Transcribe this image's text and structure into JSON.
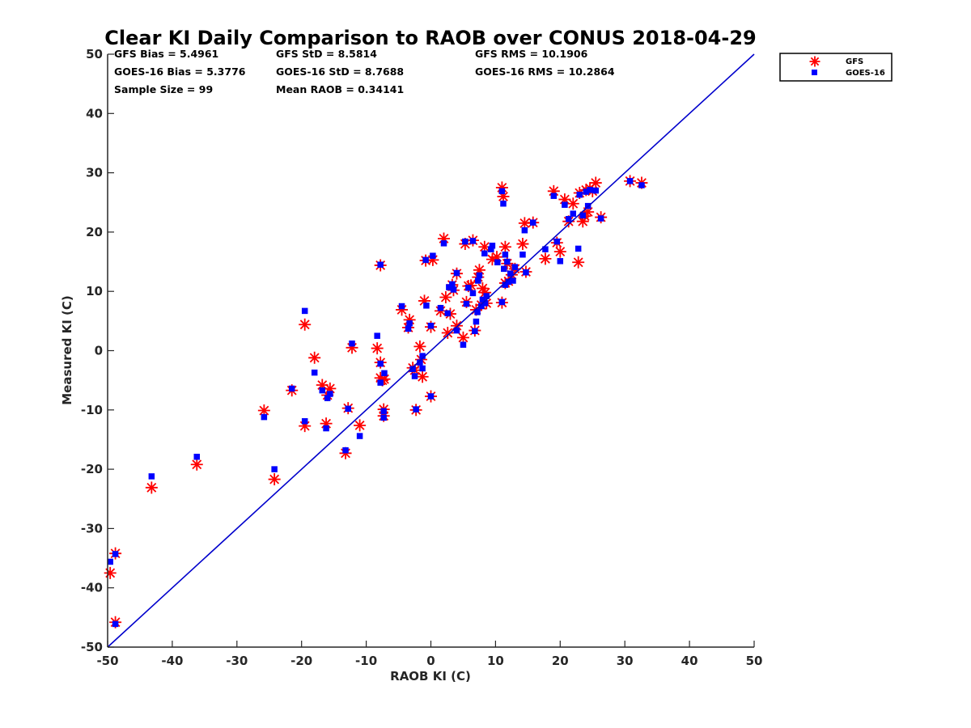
{
  "chart_data": {
    "type": "scatter",
    "title": "Clear KI Daily Comparison to RAOB over CONUS 2018-04-29",
    "xlabel": "RAOB KI (C)",
    "ylabel": "Measured KI (C)",
    "xlim": [
      -50,
      50
    ],
    "ylim": [
      -50,
      50
    ],
    "xticks": [
      "-50",
      "-40",
      "-30",
      "-20",
      "-10",
      "0",
      "10",
      "20",
      "30",
      "40",
      "50"
    ],
    "yticks": [
      "-50",
      "-40",
      "-30",
      "-20",
      "-10",
      "0",
      "10",
      "20",
      "30",
      "40",
      "50"
    ],
    "grid": false,
    "legend_position": "outside-top-right",
    "stats": [
      [
        "GFS Bias = 5.4961",
        "GFS StD = 8.5814",
        "GFS RMS = 10.1906"
      ],
      [
        "GOES-16 Bias = 5.3776",
        "GOES-16 StD = 8.7688",
        "GOES-16 RMS = 10.2864"
      ],
      [
        "Sample Size = 99",
        "Mean RAOB = 0.34141",
        ""
      ]
    ],
    "reference_line": {
      "x": [
        -50,
        50
      ],
      "y": [
        -50,
        50
      ],
      "color": "#0000cc"
    },
    "series": [
      {
        "name": "GFS",
        "marker": "asterisk",
        "color": "#ff0000",
        "points": [
          [
            -49.6,
            -37.5
          ],
          [
            -48.8,
            -45.8
          ],
          [
            -48.8,
            -34.2
          ],
          [
            -43.2,
            -23.1
          ],
          [
            -36.2,
            -19.2
          ],
          [
            -25.8,
            -10.1
          ],
          [
            -24.2,
            -21.7
          ],
          [
            -21.5,
            -6.7
          ],
          [
            -19.5,
            -12.7
          ],
          [
            -19.5,
            4.4
          ],
          [
            -18.0,
            -1.2
          ],
          [
            -16.8,
            -5.8
          ],
          [
            -16.2,
            -12.3
          ],
          [
            -16.0,
            -7.5
          ],
          [
            -15.6,
            -6.4
          ],
          [
            -13.2,
            -17.3
          ],
          [
            -12.8,
            -9.7
          ],
          [
            -12.2,
            0.5
          ],
          [
            -11.0,
            -12.6
          ],
          [
            -8.3,
            0.4
          ],
          [
            -7.8,
            14.4
          ],
          [
            -7.8,
            -4.6
          ],
          [
            -7.8,
            -2.0
          ],
          [
            -7.2,
            -4.8
          ],
          [
            -7.3,
            -11.0
          ],
          [
            -7.3,
            -9.9
          ],
          [
            -4.5,
            6.9
          ],
          [
            -3.5,
            3.9
          ],
          [
            -3.3,
            5.2
          ],
          [
            -2.8,
            -2.9
          ],
          [
            -2.5,
            -3.3
          ],
          [
            -2.3,
            -10.0
          ],
          [
            -1.7,
            0.7
          ],
          [
            -1.3,
            -4.4
          ],
          [
            -1.0,
            8.4
          ],
          [
            -0.8,
            15.2
          ],
          [
            0.0,
            4.0
          ],
          [
            0.0,
            -7.7
          ],
          [
            0.3,
            15.3
          ],
          [
            1.5,
            6.7
          ],
          [
            2.0,
            18.9
          ],
          [
            2.3,
            9.0
          ],
          [
            2.6,
            3.0
          ],
          [
            3.0,
            6.2
          ],
          [
            3.3,
            11.1
          ],
          [
            3.5,
            10.2
          ],
          [
            4.0,
            4.2
          ],
          [
            4.0,
            13.0
          ],
          [
            5.0,
            2.2
          ],
          [
            5.3,
            18.0
          ],
          [
            5.5,
            8.2
          ],
          [
            5.8,
            10.9
          ],
          [
            6.5,
            18.6
          ],
          [
            6.8,
            3.4
          ],
          [
            7.0,
            6.9
          ],
          [
            7.3,
            12.4
          ],
          [
            7.5,
            13.6
          ],
          [
            7.8,
            7.7
          ],
          [
            8.3,
            17.5
          ],
          [
            8.4,
            9.8
          ],
          [
            8.6,
            8.0
          ],
          [
            9.5,
            15.4
          ],
          [
            11.0,
            8.1
          ],
          [
            11.0,
            27.5
          ],
          [
            11.2,
            26.0
          ],
          [
            11.5,
            11.4
          ],
          [
            11.5,
            17.5
          ],
          [
            11.8,
            14.7
          ],
          [
            12.0,
            11.7
          ],
          [
            13.0,
            13.8
          ],
          [
            14.2,
            18.0
          ],
          [
            14.5,
            21.5
          ],
          [
            14.7,
            13.3
          ],
          [
            15.8,
            21.6
          ],
          [
            17.7,
            15.5
          ],
          [
            19.0,
            26.9
          ],
          [
            19.5,
            18.2
          ],
          [
            20.0,
            16.7
          ],
          [
            20.7,
            25.5
          ],
          [
            21.3,
            21.8
          ],
          [
            22.0,
            24.8
          ],
          [
            22.8,
            14.9
          ],
          [
            23.0,
            26.6
          ],
          [
            23.5,
            21.8
          ],
          [
            23.8,
            22.7
          ],
          [
            24.0,
            27.1
          ],
          [
            24.3,
            23.4
          ],
          [
            24.6,
            27.4
          ],
          [
            25.5,
            28.3
          ],
          [
            26.3,
            22.5
          ],
          [
            30.8,
            28.6
          ],
          [
            32.6,
            28.3
          ],
          [
            -7.5,
            -5.0
          ],
          [
            8.0,
            10.5
          ],
          [
            12.5,
            12.8
          ],
          [
            25.0,
            26.9
          ],
          [
            6.2,
            11.0
          ],
          [
            -1.5,
            -1.5
          ],
          [
            10.2,
            15.8
          ]
        ]
      },
      {
        "name": "GOES-16",
        "marker": "square",
        "color": "#0000ff",
        "points": [
          [
            -49.6,
            -35.6
          ],
          [
            -48.8,
            -46.1
          ],
          [
            -48.8,
            -34.3
          ],
          [
            -43.2,
            -21.2
          ],
          [
            -36.2,
            -17.9
          ],
          [
            -25.8,
            -11.2
          ],
          [
            -24.2,
            -20.0
          ],
          [
            -21.5,
            -6.4
          ],
          [
            -19.5,
            -11.9
          ],
          [
            -19.5,
            6.7
          ],
          [
            -18.0,
            -3.7
          ],
          [
            -16.8,
            -6.7
          ],
          [
            -16.2,
            -13.1
          ],
          [
            -16.0,
            -8.0
          ],
          [
            -15.6,
            -7.3
          ],
          [
            -13.2,
            -16.8
          ],
          [
            -12.8,
            -9.8
          ],
          [
            -12.2,
            1.2
          ],
          [
            -11.0,
            -14.4
          ],
          [
            -8.3,
            2.5
          ],
          [
            -7.8,
            14.5
          ],
          [
            -7.8,
            -5.4
          ],
          [
            -7.8,
            -2.2
          ],
          [
            -7.2,
            -3.8
          ],
          [
            -7.3,
            -11.3
          ],
          [
            -7.3,
            -10.2
          ],
          [
            -4.5,
            7.5
          ],
          [
            -3.5,
            3.7
          ],
          [
            -3.3,
            4.6
          ],
          [
            -2.8,
            -3.1
          ],
          [
            -2.5,
            -4.3
          ],
          [
            -2.3,
            -9.9
          ],
          [
            -1.7,
            -2.0
          ],
          [
            -1.3,
            -0.9
          ],
          [
            -1.3,
            -3.0
          ],
          [
            -0.8,
            15.3
          ],
          [
            -0.7,
            7.6
          ],
          [
            0.0,
            4.2
          ],
          [
            0.0,
            -7.7
          ],
          [
            0.3,
            16.0
          ],
          [
            1.5,
            7.2
          ],
          [
            2.0,
            18.1
          ],
          [
            2.6,
            6.3
          ],
          [
            3.3,
            11.2
          ],
          [
            3.5,
            10.3
          ],
          [
            4.0,
            3.4
          ],
          [
            4.0,
            13.1
          ],
          [
            5.0,
            1.0
          ],
          [
            5.3,
            18.4
          ],
          [
            5.5,
            7.9
          ],
          [
            5.8,
            10.6
          ],
          [
            6.5,
            18.5
          ],
          [
            6.5,
            9.7
          ],
          [
            6.8,
            3.3
          ],
          [
            7.0,
            4.9
          ],
          [
            7.3,
            11.8
          ],
          [
            7.5,
            12.7
          ],
          [
            7.8,
            7.5
          ],
          [
            8.3,
            16.4
          ],
          [
            8.4,
            8.0
          ],
          [
            8.6,
            9.2
          ],
          [
            9.3,
            17.1
          ],
          [
            9.5,
            17.7
          ],
          [
            11.0,
            8.2
          ],
          [
            11.0,
            26.9
          ],
          [
            11.2,
            24.8
          ],
          [
            11.5,
            11.1
          ],
          [
            11.5,
            16.2
          ],
          [
            11.8,
            15.0
          ],
          [
            12.0,
            11.6
          ],
          [
            12.3,
            13.0
          ],
          [
            12.7,
            11.8
          ],
          [
            13.0,
            14.1
          ],
          [
            14.2,
            16.2
          ],
          [
            14.5,
            20.3
          ],
          [
            14.7,
            13.2
          ],
          [
            15.8,
            21.6
          ],
          [
            17.7,
            17.1
          ],
          [
            19.0,
            26.1
          ],
          [
            19.5,
            18.4
          ],
          [
            20.0,
            15.1
          ],
          [
            20.7,
            24.6
          ],
          [
            21.3,
            22.2
          ],
          [
            22.0,
            23.1
          ],
          [
            22.8,
            17.2
          ],
          [
            23.0,
            26.3
          ],
          [
            23.5,
            22.8
          ],
          [
            24.0,
            26.8
          ],
          [
            24.3,
            24.4
          ],
          [
            24.6,
            27.1
          ],
          [
            25.5,
            27.0
          ],
          [
            26.3,
            22.3
          ],
          [
            30.8,
            28.6
          ],
          [
            32.6,
            27.9
          ],
          [
            11.3,
            13.8
          ],
          [
            10.3,
            14.9
          ],
          [
            7.2,
            6.5
          ],
          [
            8.0,
            8.6
          ],
          [
            2.8,
            10.7
          ]
        ]
      }
    ]
  }
}
